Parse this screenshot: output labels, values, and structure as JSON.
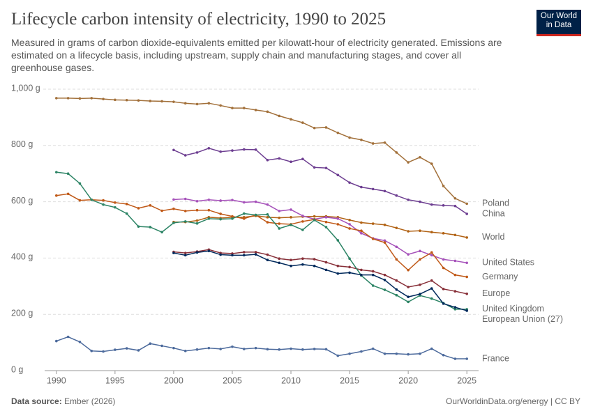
{
  "header": {
    "title": "Lifecycle carbon intensity of electricity, 1990 to 2025",
    "subtitle": "Measured in grams of carbon dioxide-equivalents emitted per kilowatt-hour of electricity generated. Emissions are estimated on a lifecycle basis, including upstream, supply chain and manufacturing stages, and cover all greenhouse gases.",
    "logo": [
      "Our World",
      "in Data"
    ]
  },
  "footer": {
    "source_label": "Data source:",
    "source": "Ember (2026)",
    "credit": "OurWorldinData.org/energy | CC BY"
  },
  "chart_data": {
    "type": "line",
    "x": [
      1990,
      1991,
      1992,
      1993,
      1994,
      1995,
      1996,
      1997,
      1998,
      1999,
      2000,
      2001,
      2002,
      2003,
      2004,
      2005,
      2006,
      2007,
      2008,
      2009,
      2010,
      2011,
      2012,
      2013,
      2014,
      2015,
      2016,
      2017,
      2018,
      2019,
      2020,
      2021,
      2022,
      2023,
      2024,
      2025
    ],
    "xlim": [
      1989,
      2026
    ],
    "xticks": [
      1990,
      1995,
      2000,
      2005,
      2010,
      2015,
      2020,
      2025
    ],
    "ylim": [
      0,
      1000
    ],
    "yticks": [
      {
        "value": 0,
        "label": "0 g"
      },
      {
        "value": 200,
        "label": "200 g"
      },
      {
        "value": 400,
        "label": "400 g"
      },
      {
        "value": 600,
        "label": "600 g"
      },
      {
        "value": 800,
        "label": "800 g"
      },
      {
        "value": 1000,
        "label": "1,000 g"
      }
    ],
    "grid": true,
    "series": [
      {
        "name": "Poland",
        "color": "#a2703a",
        "values": [
          968,
          968,
          967,
          968,
          965,
          962,
          961,
          960,
          958,
          957,
          955,
          950,
          947,
          950,
          942,
          933,
          933,
          926,
          920,
          905,
          893,
          881,
          862,
          864,
          845,
          828,
          820,
          807,
          810,
          775,
          740,
          758,
          735,
          656,
          612,
          593
        ]
      },
      {
        "name": "China",
        "color": "#6d3e91",
        "values": [
          null,
          null,
          null,
          null,
          null,
          null,
          null,
          null,
          null,
          null,
          784,
          765,
          775,
          790,
          778,
          782,
          786,
          785,
          748,
          754,
          742,
          752,
          722,
          720,
          695,
          668,
          652,
          645,
          638,
          622,
          607,
          600,
          590,
          587,
          585,
          557
        ]
      },
      {
        "name": "World",
        "color": "#b16214",
        "values": [
          null,
          null,
          null,
          null,
          null,
          null,
          null,
          null,
          null,
          null,
          528,
          528,
          533,
          545,
          542,
          545,
          545,
          550,
          545,
          543,
          545,
          547,
          548,
          548,
          545,
          535,
          526,
          522,
          518,
          507,
          495,
          497,
          492,
          488,
          482,
          473
        ]
      },
      {
        "name": "United States",
        "color": "#a652ba",
        "values": [
          null,
          null,
          null,
          null,
          null,
          null,
          null,
          null,
          null,
          null,
          608,
          610,
          602,
          607,
          604,
          606,
          598,
          600,
          590,
          567,
          572,
          550,
          538,
          545,
          540,
          520,
          488,
          470,
          462,
          440,
          413,
          425,
          410,
          395,
          390,
          383
        ]
      },
      {
        "name": "Germany",
        "color": "#c05917",
        "values": [
          622,
          628,
          605,
          607,
          605,
          597,
          592,
          577,
          587,
          568,
          575,
          567,
          570,
          570,
          557,
          548,
          540,
          553,
          527,
          522,
          520,
          530,
          537,
          528,
          520,
          505,
          497,
          468,
          455,
          395,
          357,
          395,
          420,
          365,
          340,
          333
        ]
      },
      {
        "name": "Europe",
        "color": "#883039",
        "values": [
          null,
          null,
          null,
          null,
          null,
          null,
          null,
          null,
          null,
          null,
          422,
          418,
          423,
          430,
          418,
          416,
          421,
          421,
          412,
          398,
          393,
          398,
          396,
          385,
          372,
          368,
          358,
          353,
          340,
          320,
          297,
          305,
          320,
          290,
          282,
          273
        ]
      },
      {
        "name": "United Kingdom",
        "color": "#2c8465",
        "values": [
          705,
          700,
          665,
          607,
          590,
          580,
          558,
          512,
          510,
          492,
          525,
          530,
          523,
          540,
          538,
          540,
          558,
          553,
          555,
          505,
          518,
          500,
          535,
          510,
          463,
          398,
          338,
          302,
          287,
          268,
          244,
          267,
          256,
          240,
          218,
          218
        ]
      },
      {
        "name": "European Union (27)",
        "color": "#00295b",
        "values": [
          null,
          null,
          null,
          null,
          null,
          null,
          null,
          null,
          null,
          null,
          418,
          410,
          420,
          425,
          412,
          410,
          410,
          413,
          393,
          383,
          372,
          377,
          372,
          358,
          345,
          348,
          340,
          340,
          322,
          288,
          262,
          272,
          292,
          238,
          225,
          213
        ]
      },
      {
        "name": "France",
        "color": "#4c6a9c",
        "values": [
          105,
          120,
          102,
          70,
          68,
          74,
          79,
          72,
          96,
          88,
          80,
          70,
          75,
          80,
          77,
          85,
          77,
          80,
          76,
          75,
          78,
          75,
          77,
          76,
          53,
          60,
          68,
          78,
          60,
          60,
          58,
          60,
          78,
          55,
          42,
          42
        ]
      }
    ]
  }
}
